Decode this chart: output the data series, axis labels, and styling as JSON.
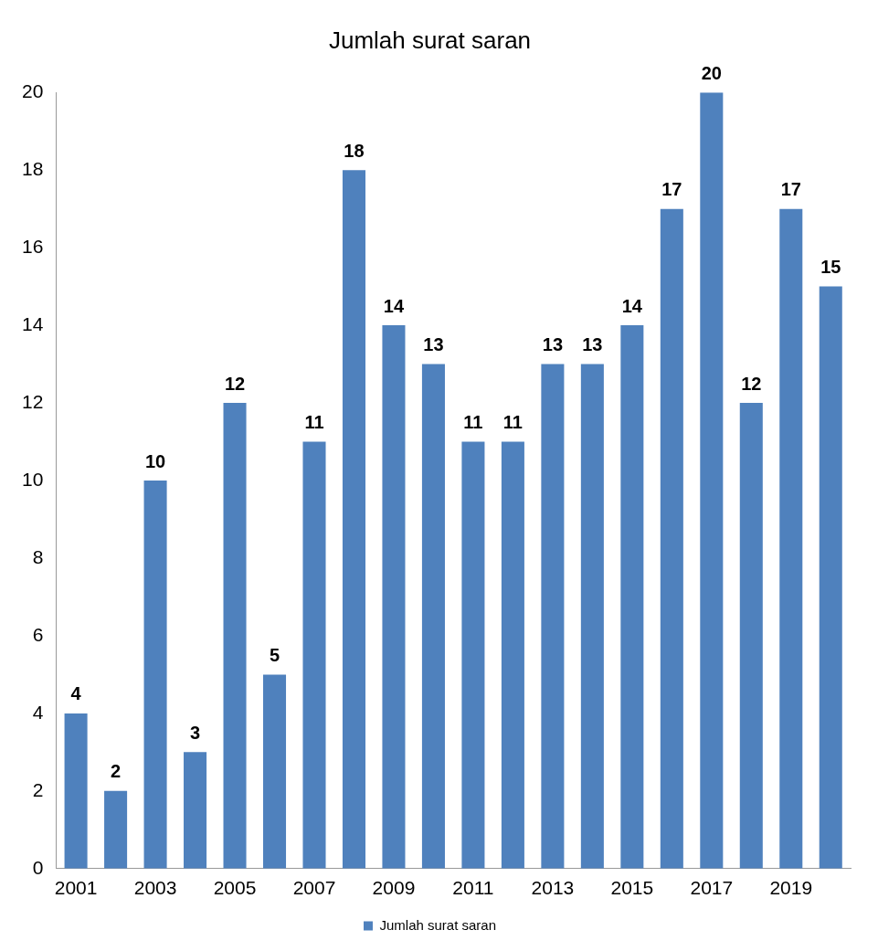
{
  "chart_data": {
    "type": "bar",
    "title": "Jumlah surat saran",
    "categories": [
      "2001",
      null,
      "2003",
      null,
      "2005",
      null,
      "2007",
      null,
      "2009",
      null,
      "2011",
      null,
      "2013",
      null,
      "2015",
      null,
      "2017",
      null,
      "2019",
      null
    ],
    "series": [
      {
        "name": "Jumlah surat saran",
        "color": "#4f81bd",
        "values": [
          4,
          2,
          10,
          3,
          12,
          5,
          11,
          18,
          14,
          13,
          11,
          11,
          13,
          13,
          14,
          17,
          20,
          12,
          17,
          15
        ]
      }
    ],
    "ylim": [
      0,
      20
    ],
    "yticks": [
      0,
      2,
      4,
      6,
      8,
      10,
      12,
      14,
      16,
      18,
      20
    ],
    "grid": false,
    "legend": "bottom",
    "data_labels": true
  }
}
